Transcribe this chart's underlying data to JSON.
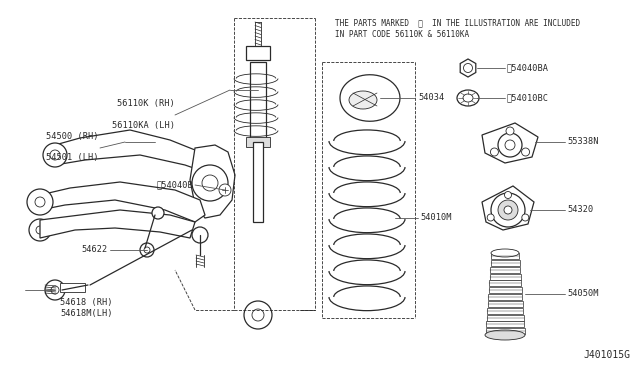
{
  "bg_color": "#ffffff",
  "line_color": "#2a2a2a",
  "diagram_id": "J401015G",
  "note_line1": "THE PARTS MARKED  ※  IN THE ILLUSTRATION ARE INCLUDED",
  "note_line2": "IN PART CODE 56110K & 56110KA",
  "fig_w": 6.4,
  "fig_h": 3.72,
  "dpi": 100
}
